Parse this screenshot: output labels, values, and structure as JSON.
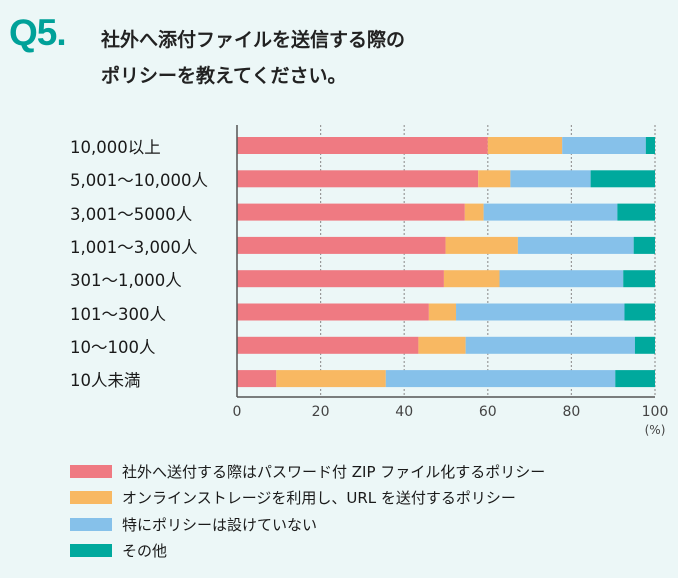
{
  "header": {
    "question_number": "Q5.",
    "title_line1": "社外へ添付ファイルを送信する際の",
    "title_line2": "ポリシーを教えてください。"
  },
  "colors": {
    "background": "#ecf7f7",
    "accent": "#00a199",
    "series": [
      "#ef7a82",
      "#f8b862",
      "#86c1ea",
      "#00a99d"
    ]
  },
  "chart_data": {
    "type": "bar",
    "orientation": "horizontal",
    "stacked": true,
    "title": "社外へ添付ファイルを送信する際のポリシーを教えてください。",
    "categories": [
      "10,000以上",
      "5,001～10,000人",
      "3,001～5000人",
      "1,001～3,000人",
      "301～1,000人",
      "101～300人",
      "10～100人",
      "10人未満"
    ],
    "series": [
      {
        "name": "社外へ送付する際はパスワード付 ZIP ファイル化するポリシー",
        "values": [
          60.0,
          57.7,
          54.5,
          49.9,
          49.5,
          45.9,
          43.4,
          9.4
        ]
      },
      {
        "name": "オンラインストレージを利用し、URL を送付するポリシー",
        "values": [
          17.8,
          7.7,
          4.5,
          17.3,
          13.3,
          6.5,
          11.3,
          26.2
        ]
      },
      {
        "name": "特にポリシーは設けていない",
        "values": [
          20.0,
          19.2,
          32.0,
          27.7,
          29.6,
          40.3,
          40.5,
          54.9
        ]
      },
      {
        "name": "その他",
        "values": [
          2.2,
          15.4,
          9.0,
          5.1,
          7.6,
          7.3,
          4.8,
          9.5
        ]
      }
    ],
    "xlabel": "(%)",
    "ylabel": "",
    "xlim": [
      0,
      100
    ],
    "xticks": [
      "0",
      "20",
      "40",
      "60",
      "80",
      "100"
    ],
    "grid": true,
    "legend_position": "bottom"
  }
}
